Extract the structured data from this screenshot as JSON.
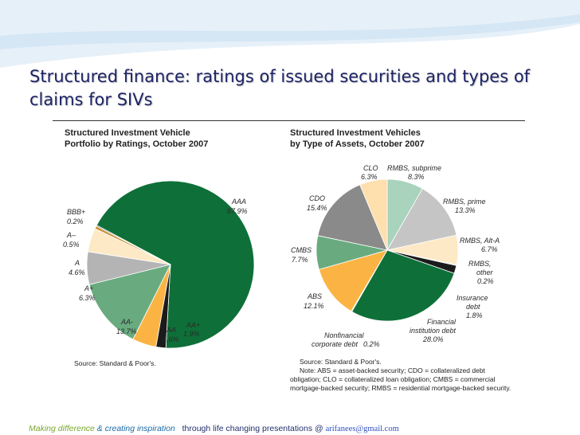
{
  "slide": {
    "title": "Structured finance: ratings of issued securities and types of claims for SIVs"
  },
  "chart_data": [
    {
      "type": "pie",
      "title": "Structured Investment Vehicle Portfolio by Ratings, October 2007",
      "title_lines": [
        "Structured Investment Vehicle",
        "Portfolio by Ratings, October 2007"
      ],
      "slices": [
        {
          "name": "AAA",
          "value_text": "67.9%",
          "value": 67.9,
          "color": "#0e7038"
        },
        {
          "name": "AA+",
          "value_text": "1.9%",
          "value": 1.9,
          "color": "#1b1b1b"
        },
        {
          "name": "AA",
          "value_text": "4.6%",
          "value": 4.6,
          "color": "#fbb444"
        },
        {
          "name": "AA-",
          "value_text": "13.7%",
          "value": 13.7,
          "color": "#69ab7f"
        },
        {
          "name": "A+",
          "value_text": "6.3%",
          "value": 6.3,
          "color": "#b4b4b4"
        },
        {
          "name": "A",
          "value_text": "4.6%",
          "value": 4.6,
          "color": "#fde9c5"
        },
        {
          "name": "A–",
          "value_text": "0.5%",
          "value": 0.5,
          "color": "#c98a2a"
        },
        {
          "name": "BBB+",
          "value_text": "0.2%",
          "value": 0.2,
          "color": "#4a4a4a"
        }
      ],
      "source": "Source: Standard & Poor's."
    },
    {
      "type": "pie",
      "title": "Structured Investment Vehicles by Type of Assets, October 2007",
      "title_lines": [
        "Structured Investment Vehicles",
        "by Type of Assets, October 2007"
      ],
      "slices": [
        {
          "name": "RMBS, subprime",
          "name_lines": [
            "RMBS, subprime"
          ],
          "value_text": "8.3%",
          "value": 8.3,
          "color": "#a9d3bc"
        },
        {
          "name": "RMBS, prime",
          "name_lines": [
            "RMBS, prime"
          ],
          "value_text": "13.3%",
          "value": 13.3,
          "color": "#c5c5c5"
        },
        {
          "name": "RMBS, Alt-A",
          "name_lines": [
            "RMBS, Alt-A"
          ],
          "value_text": "6.7%",
          "value": 6.7,
          "color": "#fde9c5"
        },
        {
          "name": "RMBS, other",
          "name_lines": [
            "RMBS,",
            "other"
          ],
          "value_text": "0.2%",
          "value": 0.2,
          "color": "#8a8a8a"
        },
        {
          "name": "Insurance debt",
          "name_lines": [
            "Insurance",
            "debt"
          ],
          "value_text": "1.8%",
          "value": 1.8,
          "color": "#1b1b1b"
        },
        {
          "name": "Financial institution debt",
          "name_lines": [
            "Financial",
            "institution debt"
          ],
          "value_text": "28.0%",
          "value": 28.0,
          "color": "#0e7038"
        },
        {
          "name": "Nonfinancial corporate debt",
          "name_lines": [
            "Nonfinancial",
            "corporate debt"
          ],
          "value_text": "0.2%",
          "value": 0.2,
          "color": "#e0b27a"
        },
        {
          "name": "ABS",
          "name_lines": [
            "ABS"
          ],
          "value_text": "12.1%",
          "value": 12.1,
          "color": "#fbb444"
        },
        {
          "name": "CMBS",
          "name_lines": [
            "CMBS"
          ],
          "value_text": "7.7%",
          "value": 7.7,
          "color": "#69ab7f"
        },
        {
          "name": "CDO",
          "name_lines": [
            "CDO"
          ],
          "value_text": "15.4%",
          "value": 15.4,
          "color": "#8a8a8a"
        },
        {
          "name": "CLO",
          "name_lines": [
            "CLO"
          ],
          "value_text": "6.3%",
          "value": 6.3,
          "color": "#fde0ad"
        }
      ],
      "source": "Source: Standard & Poor's.",
      "note_lines": [
        "Note: ABS = asset-backed security; CDO = collateralized debt",
        "obligation; CLO = collateralized loan obligation; CMBS = commercial",
        "mortgage-backed security; RMBS = residential mortgage-backed security."
      ]
    }
  ],
  "footer": {
    "part1": "Making difference",
    "part2": " & creating inspiration",
    "part3": "   through life changing presentations @ ",
    "email": "arifanees@gmail.com"
  }
}
